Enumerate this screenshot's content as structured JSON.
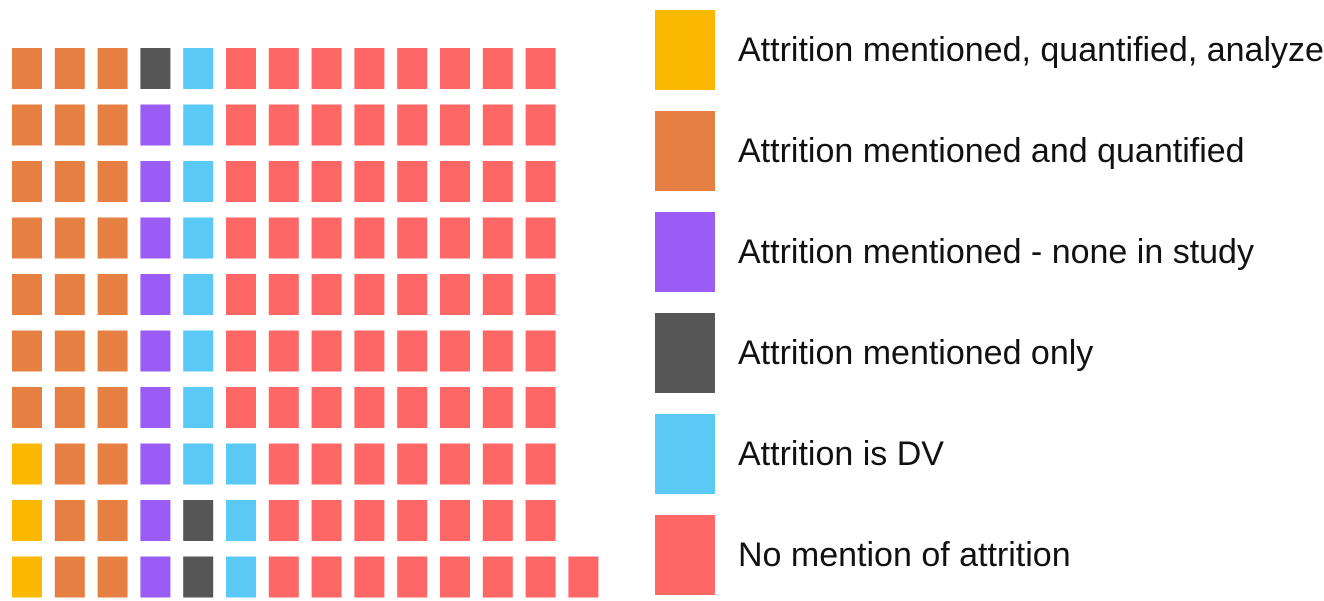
{
  "chart_data": {
    "type": "waffle",
    "rows": 10,
    "series": [
      {
        "name": "Attrition mentioned, quantified, analyzed",
        "color": "#fbb800",
        "values": [
          3
        ]
      },
      {
        "name": "Attrition mentioned and quantified",
        "color": "#e58042",
        "values": [
          27
        ]
      },
      {
        "name": "Attrition mentioned - none in study",
        "color": "#9b5cf6",
        "values": [
          9
        ]
      },
      {
        "name": "Attrition mentioned only",
        "color": "#565656",
        "values": [
          3
        ]
      },
      {
        "name": "Attrition is DV",
        "color": "#5bc9f6",
        "values": [
          11
        ]
      },
      {
        "name": "No mention of attrition",
        "color": "#ff6666",
        "values": [
          78
        ]
      }
    ]
  }
}
